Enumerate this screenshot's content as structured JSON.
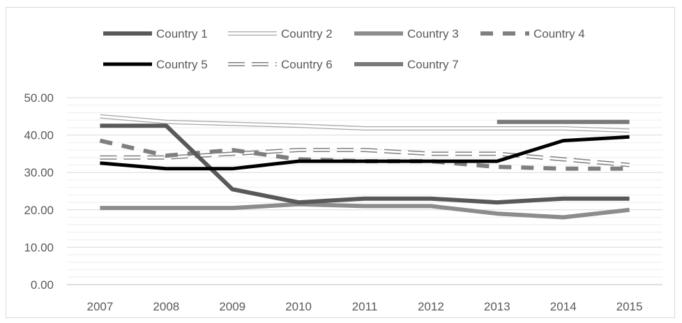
{
  "chart_data": {
    "type": "line",
    "title": "",
    "xlabel": "",
    "ylabel": "",
    "categories": [
      "2007",
      "2008",
      "2009",
      "2010",
      "2011",
      "2012",
      "2013",
      "2014",
      "2015"
    ],
    "ylim": [
      0,
      50
    ],
    "y_ticks": [
      "0.00",
      "10.00",
      "20.00",
      "30.00",
      "40.00",
      "50.00"
    ],
    "y_tick_values": [
      0,
      10,
      20,
      30,
      40,
      50
    ],
    "grid": true,
    "legend_position": "top",
    "series": [
      {
        "name": "Country 1",
        "values": [
          42.5,
          42.5,
          25.5,
          22.0,
          23.0,
          23.0,
          22.0,
          23.0,
          23.0
        ],
        "color": "#595959",
        "style": "solid"
      },
      {
        "name": "Country 2",
        "values": [
          45.0,
          43.5,
          43.0,
          42.5,
          41.8,
          41.8,
          41.8,
          41.8,
          41.2
        ],
        "color": "#d9d9d9",
        "style": "hollow"
      },
      {
        "name": "Country 3",
        "values": [
          20.5,
          20.5,
          20.5,
          21.5,
          21.0,
          21.0,
          19.0,
          18.0,
          20.0
        ],
        "color": "#8c8c8c",
        "style": "solid"
      },
      {
        "name": "Country 4",
        "values": [
          38.5,
          34.5,
          36.0,
          33.5,
          33.0,
          33.0,
          31.5,
          31.0,
          31.0
        ],
        "color": "#7f7f7f",
        "style": "dashed"
      },
      {
        "name": "Country 5",
        "values": [
          32.5,
          31.0,
          31.0,
          33.0,
          33.0,
          33.0,
          33.0,
          38.5,
          39.5
        ],
        "color": "#000000",
        "style": "solid"
      },
      {
        "name": "Country 6",
        "values": [
          34.0,
          34.0,
          35.0,
          36.0,
          36.0,
          35.0,
          35.0,
          33.5,
          32.0
        ],
        "color": "#a6a6a6",
        "style": "hollow-dashed"
      },
      {
        "name": "Country 7",
        "values": [
          null,
          null,
          null,
          null,
          null,
          null,
          43.5,
          43.5,
          43.5
        ],
        "color": "#7a7a7a",
        "style": "solid"
      }
    ]
  }
}
